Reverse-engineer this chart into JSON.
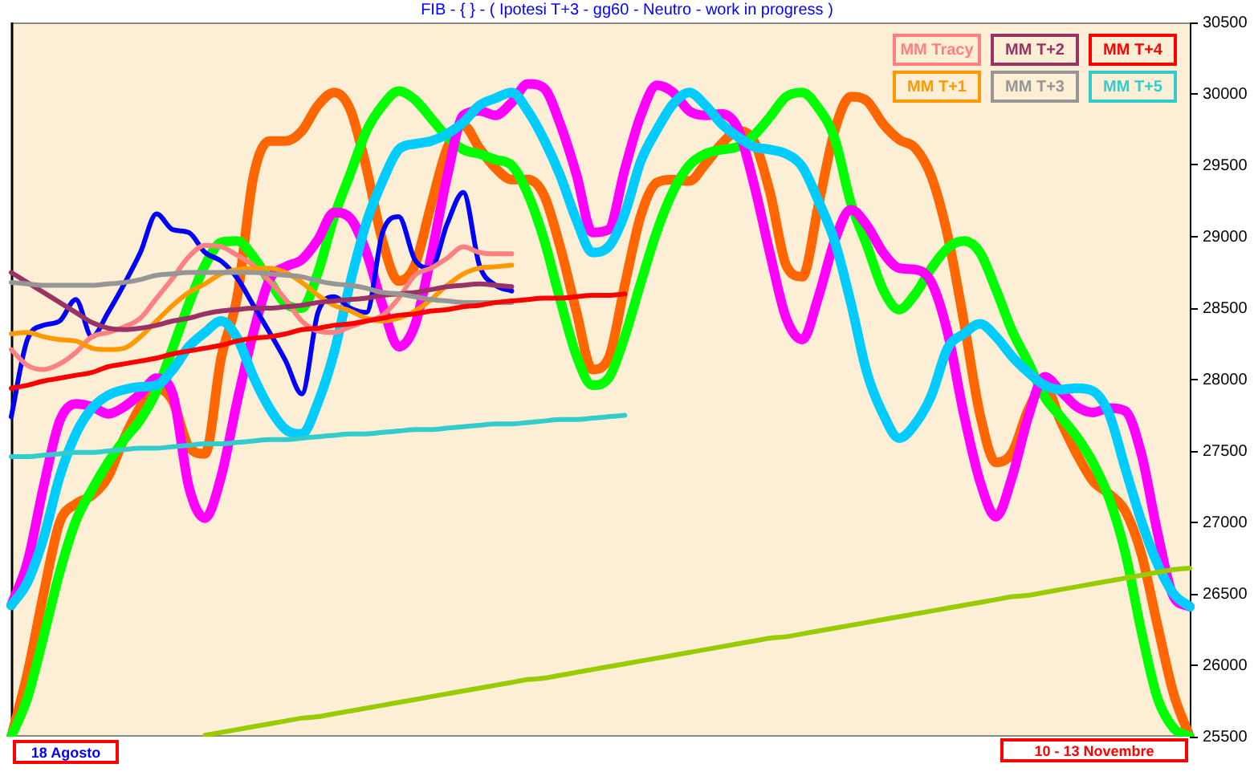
{
  "chart_data": {
    "type": "line",
    "title": "FIB - { } - ( Ipotesi T+3 - gg60 - Neutro - work in progress )",
    "categories": [
      null,
      null,
      null,
      null,
      null,
      null,
      null,
      null,
      null,
      null,
      null,
      null,
      null,
      null,
      null,
      null,
      null,
      null,
      null,
      null,
      null,
      null,
      null,
      null,
      null,
      null,
      null,
      null,
      null,
      null,
      null,
      null,
      null,
      null,
      null,
      null,
      null,
      null,
      null,
      null,
      null,
      null,
      null,
      null,
      null,
      null,
      null,
      null,
      null,
      null,
      null,
      null,
      null,
      null,
      null,
      null,
      null,
      null,
      null,
      null,
      null,
      null,
      null,
      null,
      null,
      null,
      null,
      null,
      null,
      null,
      null,
      null,
      null,
      null
    ],
    "series": [
      {
        "color": "#ff6600",
        "values": [
          25500,
          25940,
          26500,
          27000,
          27130,
          27190,
          27320,
          27590,
          27810,
          27940,
          27850,
          27530,
          27480,
          28150,
          28580,
          29420,
          29670,
          29670,
          29740,
          29920,
          30010,
          29890,
          29480,
          28970,
          28690,
          28800,
          29220,
          29620,
          29780,
          29620,
          29480,
          29400,
          29400,
          29290,
          28930,
          28480,
          28070,
          28150,
          28660,
          29150,
          29380,
          29400,
          29390,
          29510,
          29650,
          29740,
          29670,
          29310,
          28800,
          28720,
          29220,
          29740,
          29980,
          29950,
          29790,
          29680,
          29620,
          29420,
          29010,
          28410,
          27760,
          27420,
          27490,
          27790,
          27960,
          27710,
          27480,
          27290,
          27200,
          27080,
          26780,
          26280,
          25800,
          25500
        ]
      },
      {
        "color": "#00ff00",
        "values": [
          25500,
          25770,
          26200,
          26650,
          27010,
          27230,
          27420,
          27580,
          27720,
          27920,
          28220,
          28530,
          28800,
          28960,
          28970,
          28860,
          28690,
          28530,
          28500,
          28750,
          29140,
          29440,
          29740,
          29920,
          30020,
          29960,
          29830,
          29700,
          29610,
          29580,
          29540,
          29500,
          29300,
          28980,
          28560,
          28170,
          27960,
          28010,
          28300,
          28680,
          29040,
          29320,
          29500,
          29580,
          29610,
          29630,
          29710,
          29840,
          29980,
          30010,
          29900,
          29690,
          29240,
          28940,
          28630,
          28490,
          28600,
          28780,
          28920,
          28970,
          28890,
          28630,
          28340,
          28120,
          27880,
          27740,
          27600,
          27420,
          27170,
          26790,
          26240,
          25770,
          25560,
          25500
        ]
      },
      {
        "color": "#ff00ff",
        "values": [
          26420,
          26720,
          27250,
          27710,
          27830,
          27810,
          27760,
          27810,
          27900,
          28010,
          27900,
          27250,
          27030,
          27320,
          27850,
          28330,
          28700,
          28790,
          28840,
          28980,
          29170,
          29130,
          28890,
          28520,
          28230,
          28380,
          28860,
          29420,
          29850,
          29880,
          29850,
          29940,
          30070,
          30040,
          29790,
          29440,
          29030,
          29050,
          29470,
          29850,
          30060,
          30010,
          29880,
          29850,
          29860,
          29760,
          29370,
          28880,
          28430,
          28280,
          28580,
          28970,
          29190,
          29080,
          28890,
          28780,
          28770,
          28680,
          28330,
          27760,
          27290,
          27040,
          27320,
          27740,
          28020,
          27920,
          27810,
          27770,
          27800,
          27780,
          27480,
          26930,
          26480,
          26410
        ]
      },
      {
        "color": "#00ccff",
        "values": [
          26420,
          26580,
          26890,
          27320,
          27620,
          27800,
          27890,
          27930,
          27950,
          27960,
          28070,
          28230,
          28330,
          28410,
          28290,
          28020,
          27800,
          27650,
          27620,
          27840,
          28190,
          28680,
          29100,
          29390,
          29610,
          29650,
          29670,
          29720,
          29800,
          29920,
          29970,
          30010,
          29880,
          29680,
          29430,
          29120,
          28890,
          28930,
          29160,
          29530,
          29750,
          29930,
          30010,
          29920,
          29790,
          29700,
          29630,
          29610,
          29580,
          29490,
          29250,
          28970,
          28540,
          28050,
          27760,
          27590,
          27690,
          27890,
          28220,
          28320,
          28390,
          28300,
          28160,
          28050,
          27960,
          27930,
          27940,
          27920,
          27760,
          27380,
          27010,
          26710,
          26500,
          26410
        ]
      },
      {
        "color": "#99cc00",
        "values": [
          null,
          null,
          null,
          null,
          null,
          null,
          null,
          null,
          null,
          null,
          null,
          null,
          25510,
          25530,
          25550,
          25570,
          25590,
          25610,
          25630,
          25640,
          25660,
          25680,
          25700,
          25720,
          25740,
          25760,
          25780,
          25800,
          25820,
          25840,
          25860,
          25880,
          25900,
          25910,
          25930,
          25950,
          25970,
          25990,
          26010,
          26030,
          26050,
          26070,
          26090,
          26110,
          26130,
          26150,
          26170,
          26190,
          26200,
          26220,
          26240,
          26260,
          26280,
          26300,
          26320,
          26340,
          26360,
          26380,
          26400,
          26420,
          26440,
          26460,
          26480,
          26490,
          26510,
          26530,
          26550,
          26570,
          26590,
          26610,
          26630,
          26650,
          26670,
          26680
        ]
      },
      {
        "color": "#0000ff",
        "values": [
          27740,
          28280,
          28380,
          28410,
          28560,
          28300,
          28470,
          28670,
          28890,
          29160,
          29050,
          29030,
          28890,
          28830,
          28710,
          28520,
          28330,
          28130,
          27900,
          28470,
          28580,
          28500,
          28470,
          29030,
          29140,
          28840,
          28780,
          29090,
          29310,
          28800,
          28660,
          28620,
          null,
          null,
          null,
          null,
          null,
          null,
          null,
          null,
          null,
          null,
          null,
          null,
          null,
          null,
          null,
          null,
          null,
          null,
          null,
          null,
          null,
          null,
          null,
          null,
          null,
          null,
          null,
          null,
          null,
          null,
          null,
          null,
          null,
          null,
          null,
          null,
          null,
          null,
          null,
          null,
          null,
          null
        ]
      },
      {
        "name": "MM Tracy",
        "color": "#ff8080",
        "values": [
          28210,
          28100,
          28070,
          28110,
          28190,
          28300,
          28330,
          28370,
          28430,
          28570,
          28710,
          28860,
          28940,
          28930,
          28870,
          28800,
          28690,
          28560,
          28410,
          28340,
          28330,
          28370,
          28410,
          28450,
          28570,
          28730,
          28780,
          28850,
          28930,
          28890,
          28880,
          28880,
          null,
          null,
          null,
          null,
          null,
          null,
          null,
          null,
          null,
          null,
          null,
          null,
          null,
          null,
          null,
          null,
          null,
          null,
          null,
          null,
          null,
          null,
          null,
          null,
          null,
          null,
          null,
          null,
          null,
          null,
          null,
          null,
          null,
          null,
          null,
          null,
          null,
          null,
          null,
          null,
          null,
          null
        ]
      },
      {
        "name": "MM T+1",
        "color": "#ff9900",
        "values": [
          28320,
          28330,
          28300,
          28280,
          28270,
          28220,
          28210,
          28220,
          28300,
          28410,
          28520,
          28610,
          28670,
          28740,
          28770,
          28780,
          28780,
          28750,
          28680,
          28590,
          28520,
          28480,
          28430,
          28410,
          28430,
          28480,
          28560,
          28660,
          28740,
          28780,
          28790,
          28800,
          null,
          null,
          null,
          null,
          null,
          null,
          null,
          null,
          null,
          null,
          null,
          null,
          null,
          null,
          null,
          null,
          null,
          null,
          null,
          null,
          null,
          null,
          null,
          null,
          null,
          null,
          null,
          null,
          null,
          null,
          null,
          null,
          null,
          null,
          null,
          null,
          null,
          null,
          null,
          null,
          null,
          null
        ]
      },
      {
        "name": "MM T+2",
        "color": "#993366",
        "values": [
          28750,
          28680,
          28610,
          28540,
          28470,
          28400,
          28360,
          28350,
          28360,
          28380,
          28410,
          28430,
          28460,
          28480,
          28490,
          28500,
          28500,
          28510,
          28520,
          28540,
          28550,
          28560,
          28570,
          28590,
          28600,
          28610,
          28630,
          28650,
          28660,
          28670,
          28660,
          28650,
          null,
          null,
          null,
          null,
          null,
          null,
          null,
          null,
          null,
          null,
          null,
          null,
          null,
          null,
          null,
          null,
          null,
          null,
          null,
          null,
          null,
          null,
          null,
          null,
          null,
          null,
          null,
          null,
          null,
          null,
          null,
          null,
          null,
          null,
          null,
          null,
          null,
          null,
          null,
          null,
          null,
          null
        ]
      },
      {
        "name": "MM T+3",
        "color": "#969696",
        "values": [
          28680,
          28670,
          28660,
          28660,
          28660,
          28660,
          28670,
          28680,
          28700,
          28730,
          28740,
          28750,
          28750,
          28750,
          28750,
          28750,
          28740,
          28730,
          28720,
          28690,
          28670,
          28660,
          28640,
          28610,
          28600,
          28580,
          28560,
          28550,
          28540,
          28540,
          28540,
          28540,
          null,
          null,
          null,
          null,
          null,
          null,
          null,
          null,
          null,
          null,
          null,
          null,
          null,
          null,
          null,
          null,
          null,
          null,
          null,
          null,
          null,
          null,
          null,
          null,
          null,
          null,
          null,
          null,
          null,
          null,
          null,
          null,
          null,
          null,
          null,
          null,
          null,
          null,
          null,
          null,
          null,
          null
        ]
      },
      {
        "name": "MM T+4",
        "color": "#ff0000",
        "values": [
          27940,
          27960,
          27990,
          28010,
          28030,
          28050,
          28090,
          28110,
          28130,
          28150,
          28180,
          28200,
          28220,
          28240,
          28270,
          28290,
          28300,
          28320,
          28350,
          28360,
          28380,
          28390,
          28410,
          28430,
          28450,
          28460,
          28480,
          28490,
          28510,
          28520,
          28540,
          28550,
          28560,
          28570,
          28570,
          28580,
          28590,
          28590,
          28600,
          null,
          null,
          null,
          null,
          null,
          null,
          null,
          null,
          null,
          null,
          null,
          null,
          null,
          null,
          null,
          null,
          null,
          null,
          null,
          null,
          null,
          null,
          null,
          null,
          null,
          null,
          null,
          null,
          null,
          null,
          null,
          null,
          null,
          null,
          null
        ]
      },
      {
        "name": "MM T+5",
        "color": "#33cccc",
        "values": [
          27460,
          27460,
          27470,
          27480,
          27490,
          27490,
          27500,
          27510,
          27520,
          27520,
          27530,
          27540,
          27550,
          27550,
          27560,
          27570,
          27580,
          27580,
          27590,
          27600,
          27610,
          27620,
          27620,
          27630,
          27640,
          27650,
          27650,
          27660,
          27670,
          27680,
          27690,
          27690,
          27700,
          27710,
          27720,
          27720,
          27730,
          27740,
          27750,
          null,
          null,
          null,
          null,
          null,
          null,
          null,
          null,
          null,
          null,
          null,
          null,
          null,
          null,
          null,
          null,
          null,
          null,
          null,
          null,
          null,
          null,
          null,
          null,
          null,
          null,
          null,
          null,
          null,
          null,
          null,
          null,
          null,
          null,
          null
        ]
      }
    ],
    "ylim": [
      25500,
      30500
    ],
    "yticks": [
      25500,
      26000,
      26500,
      27000,
      27500,
      28000,
      28500,
      29000,
      29500,
      30000,
      30500
    ],
    "legend": "top right",
    "annotations": [
      "18 Agosto",
      "10 - 13 Novembre"
    ]
  }
}
